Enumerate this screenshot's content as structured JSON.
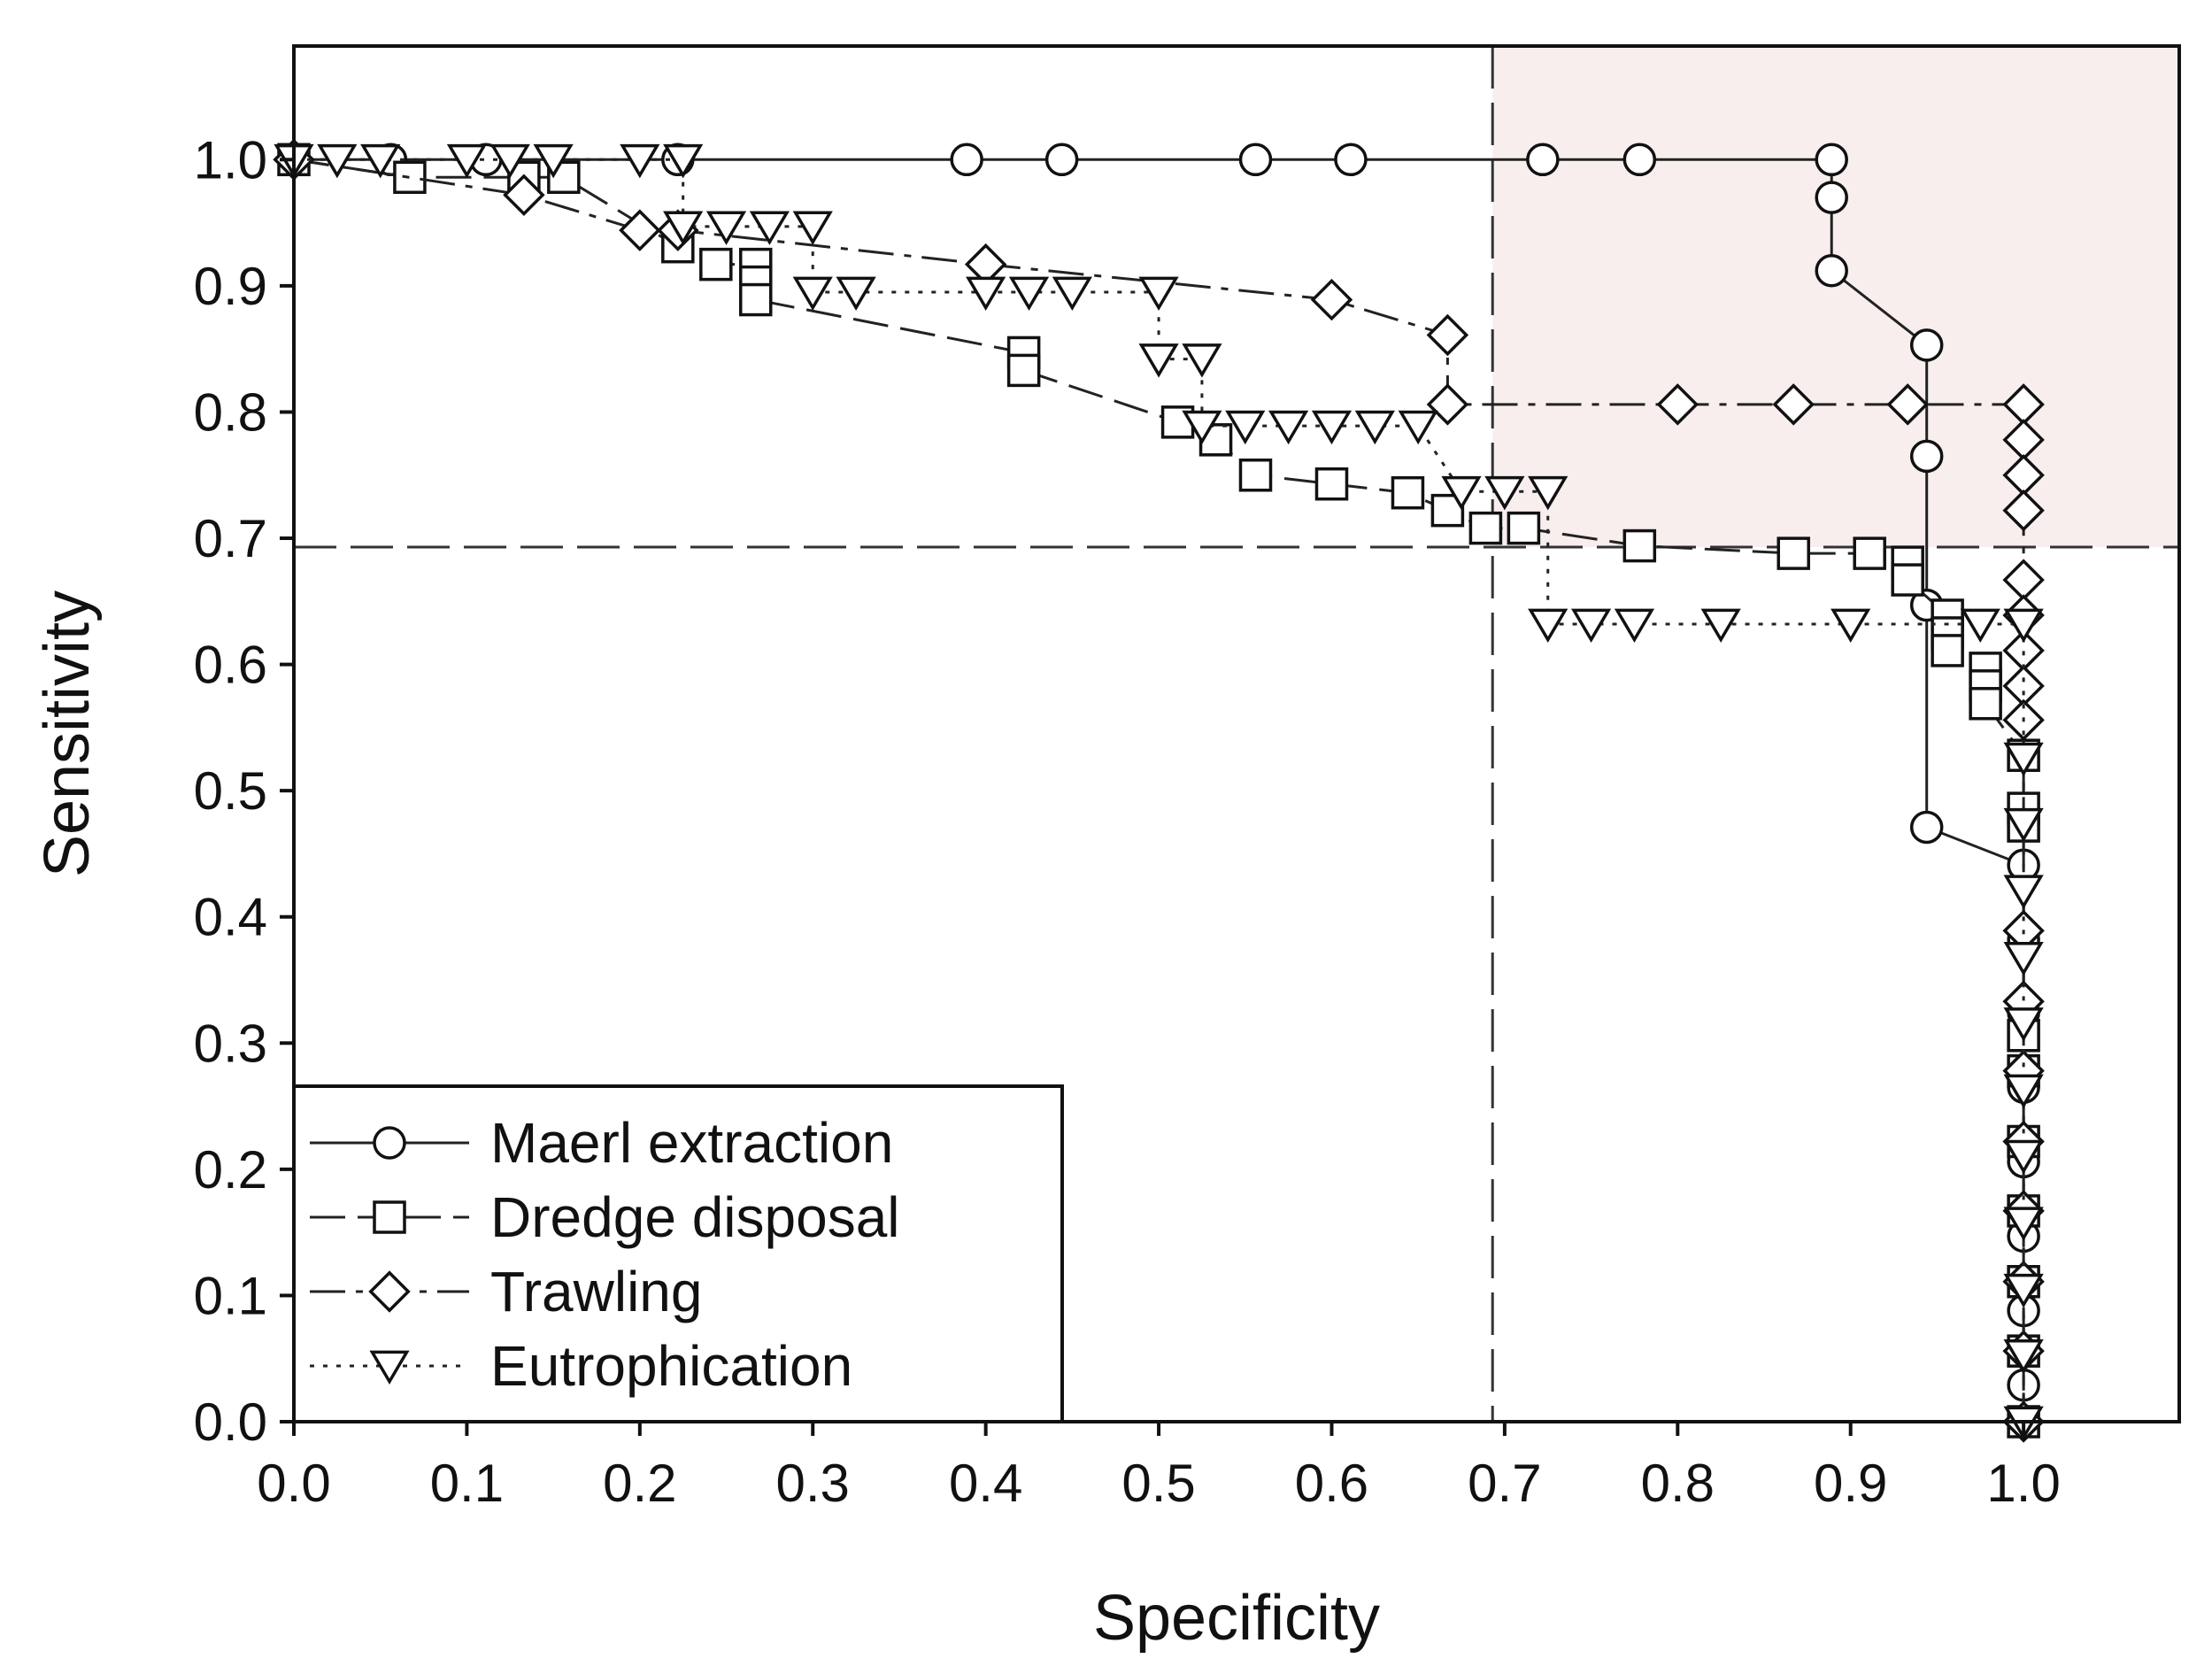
{
  "chart_data": {
    "type": "line",
    "title": "",
    "xlabel": "Specificity",
    "ylabel": "Sensitivity",
    "xlim": [
      0.0,
      1.09
    ],
    "ylim": [
      0.0,
      1.09
    ],
    "xticks": [
      "0.0",
      "0.1",
      "0.2",
      "0.3",
      "0.4",
      "0.5",
      "0.6",
      "0.7",
      "0.8",
      "0.9",
      "1.0"
    ],
    "yticks": [
      "0.0",
      "0.1",
      "0.2",
      "0.3",
      "0.4",
      "0.5",
      "0.6",
      "0.7",
      "0.8",
      "0.9",
      "1.0"
    ],
    "grid": false,
    "legend_position": "bottom-left",
    "reference_lines": {
      "specificity": 0.693,
      "sensitivity": 0.693
    },
    "highlight_region": {
      "specificity_range": [
        0.693,
        1.09
      ],
      "sensitivity_range": [
        0.693,
        1.09
      ],
      "color": "#f8eeee"
    },
    "series": [
      {
        "name": "Maerl extraction",
        "marker": "circle",
        "line_style": "solid",
        "points": [
          [
            0.0,
            1.0
          ],
          [
            0.056,
            1.0
          ],
          [
            0.111,
            1.0
          ],
          [
            0.222,
            1.0
          ],
          [
            0.389,
            1.0
          ],
          [
            0.444,
            1.0
          ],
          [
            0.556,
            1.0
          ],
          [
            0.611,
            1.0
          ],
          [
            0.722,
            1.0
          ],
          [
            0.778,
            1.0
          ],
          [
            0.889,
            1.0
          ],
          [
            0.889,
            0.97
          ],
          [
            0.889,
            0.912
          ],
          [
            0.944,
            0.853
          ],
          [
            0.944,
            0.765
          ],
          [
            0.944,
            0.647
          ],
          [
            0.944,
            0.471
          ],
          [
            1.0,
            0.441
          ],
          [
            1.0,
            0.382
          ],
          [
            1.0,
            0.324
          ],
          [
            1.0,
            0.265
          ],
          [
            1.0,
            0.206
          ],
          [
            1.0,
            0.147
          ],
          [
            1.0,
            0.088
          ],
          [
            1.0,
            0.029
          ],
          [
            1.0,
            0.0
          ]
        ]
      },
      {
        "name": "Dredge disposal",
        "marker": "square",
        "line_style": "dashed",
        "points": [
          [
            0.0,
            1.0
          ],
          [
            0.067,
            0.986
          ],
          [
            0.133,
            0.986
          ],
          [
            0.156,
            0.986
          ],
          [
            0.222,
            0.931
          ],
          [
            0.244,
            0.917
          ],
          [
            0.267,
            0.917
          ],
          [
            0.267,
            0.903
          ],
          [
            0.267,
            0.889
          ],
          [
            0.422,
            0.847
          ],
          [
            0.422,
            0.833
          ],
          [
            0.511,
            0.792
          ],
          [
            0.533,
            0.778
          ],
          [
            0.556,
            0.75
          ],
          [
            0.6,
            0.743
          ],
          [
            0.644,
            0.736
          ],
          [
            0.667,
            0.722
          ],
          [
            0.689,
            0.708
          ],
          [
            0.711,
            0.708
          ],
          [
            0.778,
            0.694
          ],
          [
            0.867,
            0.688
          ],
          [
            0.911,
            0.688
          ],
          [
            0.933,
            0.681
          ],
          [
            0.933,
            0.667
          ],
          [
            0.956,
            0.639
          ],
          [
            0.956,
            0.625
          ],
          [
            0.956,
            0.611
          ],
          [
            0.978,
            0.597
          ],
          [
            0.978,
            0.583
          ],
          [
            0.978,
            0.569
          ],
          [
            1.0,
            0.528
          ],
          [
            1.0,
            0.486
          ],
          [
            1.0,
            0.472
          ],
          [
            1.0,
            0.306
          ],
          [
            1.0,
            0.278
          ],
          [
            1.0,
            0.222
          ],
          [
            1.0,
            0.167
          ],
          [
            1.0,
            0.111
          ],
          [
            1.0,
            0.056
          ],
          [
            1.0,
            0.0
          ]
        ]
      },
      {
        "name": "Trawling",
        "marker": "diamond",
        "line_style": "dash-dot",
        "points": [
          [
            0.0,
            1.0
          ],
          [
            0.133,
            0.972
          ],
          [
            0.2,
            0.944
          ],
          [
            0.222,
            0.944
          ],
          [
            0.4,
            0.917
          ],
          [
            0.6,
            0.889
          ],
          [
            0.667,
            0.861
          ],
          [
            0.667,
            0.806
          ],
          [
            0.8,
            0.806
          ],
          [
            0.867,
            0.806
          ],
          [
            0.933,
            0.806
          ],
          [
            1.0,
            0.806
          ],
          [
            1.0,
            0.778
          ],
          [
            1.0,
            0.75
          ],
          [
            1.0,
            0.722
          ],
          [
            1.0,
            0.667
          ],
          [
            1.0,
            0.639
          ],
          [
            1.0,
            0.611
          ],
          [
            1.0,
            0.583
          ],
          [
            1.0,
            0.556
          ],
          [
            1.0,
            0.389
          ],
          [
            1.0,
            0.333
          ],
          [
            1.0,
            0.278
          ],
          [
            1.0,
            0.222
          ],
          [
            1.0,
            0.167
          ],
          [
            1.0,
            0.111
          ],
          [
            1.0,
            0.056
          ],
          [
            1.0,
            0.0
          ]
        ]
      },
      {
        "name": "Eutrophication",
        "marker": "triangle-down",
        "line_style": "dotted",
        "points": [
          [
            0.0,
            1.0
          ],
          [
            0.025,
            1.0
          ],
          [
            0.05,
            1.0
          ],
          [
            0.1,
            1.0
          ],
          [
            0.125,
            1.0
          ],
          [
            0.15,
            1.0
          ],
          [
            0.2,
            1.0
          ],
          [
            0.225,
            1.0
          ],
          [
            0.225,
            0.947
          ],
          [
            0.25,
            0.947
          ],
          [
            0.275,
            0.947
          ],
          [
            0.3,
            0.947
          ],
          [
            0.3,
            0.895
          ],
          [
            0.325,
            0.895
          ],
          [
            0.4,
            0.895
          ],
          [
            0.425,
            0.895
          ],
          [
            0.45,
            0.895
          ],
          [
            0.5,
            0.895
          ],
          [
            0.5,
            0.842
          ],
          [
            0.525,
            0.842
          ],
          [
            0.525,
            0.789
          ],
          [
            0.55,
            0.789
          ],
          [
            0.575,
            0.789
          ],
          [
            0.6,
            0.789
          ],
          [
            0.625,
            0.789
          ],
          [
            0.65,
            0.789
          ],
          [
            0.675,
            0.737
          ],
          [
            0.7,
            0.737
          ],
          [
            0.725,
            0.737
          ],
          [
            0.725,
            0.632
          ],
          [
            0.75,
            0.632
          ],
          [
            0.775,
            0.632
          ],
          [
            0.825,
            0.632
          ],
          [
            0.9,
            0.632
          ],
          [
            0.975,
            0.632
          ],
          [
            1.0,
            0.632
          ],
          [
            1.0,
            0.526
          ],
          [
            1.0,
            0.474
          ],
          [
            1.0,
            0.421
          ],
          [
            1.0,
            0.368
          ],
          [
            1.0,
            0.316
          ],
          [
            1.0,
            0.263
          ],
          [
            1.0,
            0.211
          ],
          [
            1.0,
            0.158
          ],
          [
            1.0,
            0.105
          ],
          [
            1.0,
            0.053
          ],
          [
            1.0,
            0.0
          ]
        ]
      }
    ]
  }
}
